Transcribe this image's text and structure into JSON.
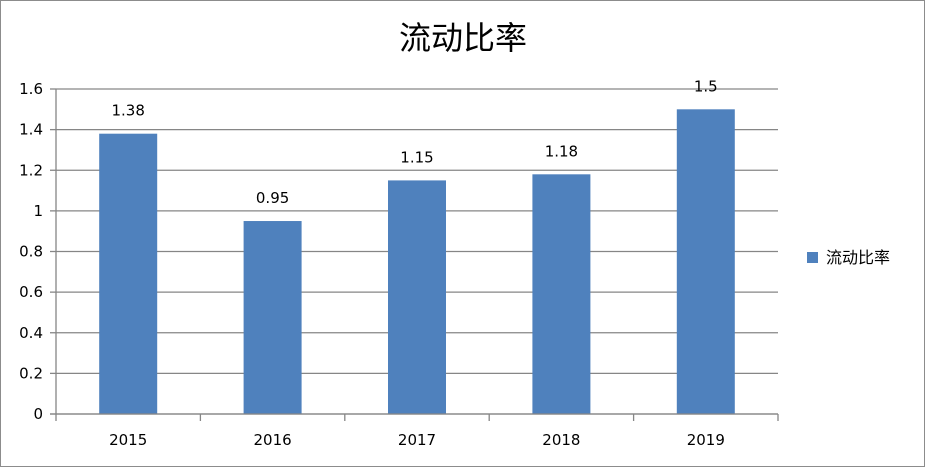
{
  "chart_data": {
    "type": "bar",
    "title": "流动比率",
    "categories": [
      "2015",
      "2016",
      "2017",
      "2018",
      "2019"
    ],
    "series": [
      {
        "name": "流动比率",
        "values": [
          1.38,
          0.95,
          1.15,
          1.18,
          1.5
        ],
        "color": "#4f81bd"
      }
    ],
    "data_labels": [
      "1.38",
      "0.95",
      "1.15",
      "1.18",
      "1.5"
    ],
    "y_ticks": [
      "0",
      "0.2",
      "0.4",
      "0.6",
      "0.8",
      "1",
      "1.2",
      "1.4",
      "1.6"
    ],
    "ylim": [
      0,
      1.6
    ],
    "grid": true,
    "legend_position": "right",
    "colors": {
      "bar": "#4f81bd",
      "grid": "#868686",
      "axis": "#868686"
    }
  }
}
